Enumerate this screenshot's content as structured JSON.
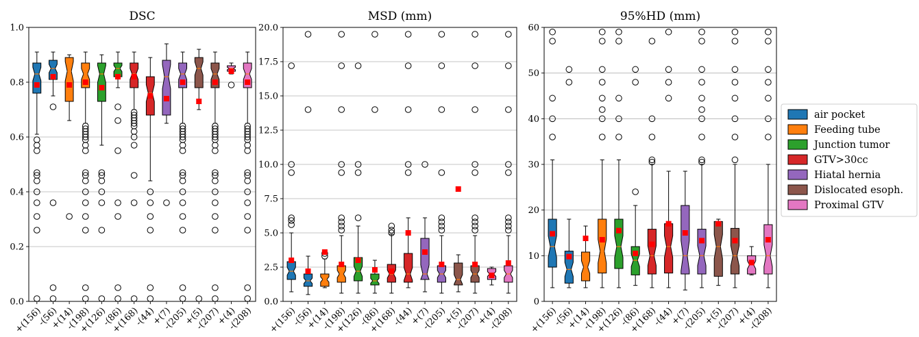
{
  "chart_data": [
    {
      "type": "boxplot",
      "title": "DSC",
      "ylim": [
        0,
        1.0
      ],
      "yticks": [
        "0.0",
        "0.2",
        "0.4",
        "0.6",
        "0.8",
        "1.0"
      ],
      "grid": "horizontal",
      "categories": [
        "+(156)",
        "-(56)",
        "+(14)",
        "-(198)",
        "+(126)",
        "-(86)",
        "+(168)",
        "-(44)",
        "+(7)",
        "-(205)",
        "+(5)",
        "-(207)",
        "+(4)",
        "-(208)"
      ],
      "boxes": [
        {
          "group": "air pocket",
          "q1": 0.76,
          "median": 0.83,
          "q3": 0.87,
          "whislo": 0.61,
          "whishi": 0.91,
          "mean": 0.79,
          "outliers": [
            0.59,
            0.57,
            0.55,
            0.47,
            0.46,
            0.44,
            0.4,
            0.36,
            0.31,
            0.26,
            0.01
          ]
        },
        {
          "group": "air pocket",
          "q1": 0.81,
          "median": 0.85,
          "q3": 0.88,
          "whislo": 0.75,
          "whishi": 0.91,
          "mean": 0.82,
          "outliers": [
            0.71,
            0.36,
            0.05,
            0.01
          ]
        },
        {
          "group": "Feeding tube",
          "q1": 0.73,
          "median": 0.84,
          "q3": 0.89,
          "whislo": 0.66,
          "whishi": 0.9,
          "mean": 0.79,
          "outliers": [
            0.31
          ]
        },
        {
          "group": "Feeding tube",
          "q1": 0.78,
          "median": 0.83,
          "q3": 0.87,
          "whislo": 0.65,
          "whishi": 0.91,
          "mean": 0.8,
          "outliers": [
            0.64,
            0.63,
            0.62,
            0.61,
            0.6,
            0.59,
            0.57,
            0.55,
            0.47,
            0.46,
            0.44,
            0.4,
            0.36,
            0.31,
            0.26,
            0.05,
            0.01
          ]
        },
        {
          "group": "Junction tumor",
          "q1": 0.73,
          "median": 0.83,
          "q3": 0.87,
          "whislo": 0.57,
          "whishi": 0.9,
          "mean": 0.78,
          "outliers": [
            0.47,
            0.46,
            0.44,
            0.4,
            0.36,
            0.26,
            0.01
          ]
        },
        {
          "group": "Junction tumor",
          "q1": 0.82,
          "median": 0.85,
          "q3": 0.87,
          "whislo": 0.78,
          "whishi": 0.91,
          "mean": 0.82,
          "outliers": [
            0.71,
            0.66,
            0.55,
            0.36,
            0.31,
            0.05,
            0.01
          ]
        },
        {
          "group": "GTV>30cc",
          "q1": 0.78,
          "median": 0.83,
          "q3": 0.87,
          "whislo": 0.7,
          "whishi": 0.91,
          "mean": 0.82,
          "outliers": [
            0.69,
            0.68,
            0.67,
            0.66,
            0.65,
            0.64,
            0.62,
            0.6,
            0.57,
            0.46,
            0.36,
            0.01
          ]
        },
        {
          "group": "GTV>30cc",
          "q1": 0.68,
          "median": 0.76,
          "q3": 0.82,
          "whislo": 0.44,
          "whishi": 0.89,
          "mean": 0.75,
          "outliers": [
            0.4,
            0.36,
            0.31,
            0.26,
            0.05,
            0.01
          ]
        },
        {
          "group": "Hiatal hernia",
          "q1": 0.68,
          "median": 0.82,
          "q3": 0.88,
          "whislo": 0.65,
          "whishi": 0.94,
          "mean": 0.74,
          "outliers": [
            0.36
          ]
        },
        {
          "group": "Hiatal hernia",
          "q1": 0.78,
          "median": 0.83,
          "q3": 0.87,
          "whislo": 0.65,
          "whishi": 0.91,
          "mean": 0.8,
          "outliers": [
            0.64,
            0.63,
            0.62,
            0.61,
            0.6,
            0.59,
            0.57,
            0.55,
            0.47,
            0.46,
            0.44,
            0.4,
            0.36,
            0.31,
            0.26,
            0.05,
            0.01
          ]
        },
        {
          "group": "Dislocated esoph.",
          "q1": 0.78,
          "median": 0.85,
          "q3": 0.89,
          "whislo": 0.7,
          "whishi": 0.92,
          "mean": 0.73,
          "outliers": [
            0.01
          ]
        },
        {
          "group": "Dislocated esoph.",
          "q1": 0.78,
          "median": 0.83,
          "q3": 0.87,
          "whislo": 0.65,
          "whishi": 0.91,
          "mean": 0.8,
          "outliers": [
            0.64,
            0.63,
            0.62,
            0.61,
            0.6,
            0.59,
            0.57,
            0.55,
            0.47,
            0.46,
            0.44,
            0.4,
            0.36,
            0.31,
            0.26,
            0.05,
            0.01
          ]
        },
        {
          "group": "Proximal GTV",
          "q1": 0.84,
          "median": 0.85,
          "q3": 0.86,
          "whislo": 0.83,
          "whishi": 0.87,
          "mean": 0.84,
          "outliers": [
            0.79
          ]
        },
        {
          "group": "Proximal GTV",
          "q1": 0.78,
          "median": 0.83,
          "q3": 0.87,
          "whislo": 0.65,
          "whishi": 0.91,
          "mean": 0.8,
          "outliers": [
            0.64,
            0.63,
            0.62,
            0.61,
            0.6,
            0.59,
            0.57,
            0.55,
            0.47,
            0.46,
            0.44,
            0.4,
            0.36,
            0.31,
            0.26,
            0.05,
            0.01
          ]
        }
      ]
    },
    {
      "type": "boxplot",
      "title": "MSD (mm)",
      "ylim": [
        0,
        20.0
      ],
      "yticks": [
        "0.0",
        "2.5",
        "5.0",
        "7.5",
        "10.0",
        "12.5",
        "15.0",
        "17.5",
        "20.0"
      ],
      "grid": "horizontal",
      "categories": [
        "+(156)",
        "-(56)",
        "+(14)",
        "-(198)",
        "+(126)",
        "-(86)",
        "+(168)",
        "-(44)",
        "+(7)",
        "-(205)",
        "+(5)",
        "-(207)",
        "+(4)",
        "-(208)"
      ],
      "boxes": [
        {
          "group": "air pocket",
          "q1": 1.6,
          "median": 2.2,
          "q3": 2.9,
          "whislo": 0.7,
          "whishi": 5.0,
          "mean": 3.0,
          "outliers": [
            5.6,
            5.9,
            6.1,
            9.4,
            10.0,
            17.2
          ]
        },
        {
          "group": "air pocket",
          "q1": 1.1,
          "median": 1.5,
          "q3": 2.0,
          "whislo": 0.5,
          "whishi": 3.3,
          "mean": 2.2,
          "outliers": [
            14.0,
            19.5
          ]
        },
        {
          "group": "Feeding tube",
          "q1": 1.1,
          "median": 1.6,
          "q3": 2.0,
          "whislo": 1.0,
          "whishi": 3.1,
          "mean": 3.6,
          "outliers": [
            3.3,
            3.5
          ]
        },
        {
          "group": "Feeding tube",
          "q1": 1.4,
          "median": 2.0,
          "q3": 2.6,
          "whislo": 0.6,
          "whishi": 4.8,
          "mean": 2.7,
          "outliers": [
            5.2,
            5.5,
            5.8,
            6.1,
            9.4,
            10.0,
            14.0,
            17.2,
            19.5
          ]
        },
        {
          "group": "Junction tumor",
          "q1": 1.5,
          "median": 2.2,
          "q3": 3.2,
          "whislo": 0.6,
          "whishi": 5.5,
          "mean": 3.0,
          "outliers": [
            6.1,
            9.4,
            10.0,
            17.2
          ]
        },
        {
          "group": "Junction tumor",
          "q1": 1.2,
          "median": 1.5,
          "q3": 2.0,
          "whislo": 0.6,
          "whishi": 3.0,
          "mean": 2.3,
          "outliers": [
            14.0,
            19.5
          ]
        },
        {
          "group": "GTV>30cc",
          "q1": 1.4,
          "median": 2.0,
          "q3": 2.7,
          "whislo": 0.6,
          "whishi": 4.9,
          "mean": 2.2,
          "outliers": [
            5.0,
            5.2,
            5.5
          ]
        },
        {
          "group": "GTV>30cc",
          "q1": 1.4,
          "median": 2.0,
          "q3": 3.5,
          "whislo": 1.0,
          "whishi": 6.1,
          "mean": 5.0,
          "outliers": [
            9.4,
            10.0,
            14.0,
            17.2,
            19.5
          ]
        },
        {
          "group": "Hiatal hernia",
          "q1": 1.6,
          "median": 2.0,
          "q3": 4.6,
          "whislo": 0.7,
          "whishi": 6.1,
          "mean": 3.6,
          "outliers": [
            10.0
          ]
        },
        {
          "group": "Hiatal hernia",
          "q1": 1.4,
          "median": 2.0,
          "q3": 2.6,
          "whislo": 0.6,
          "whishi": 4.8,
          "mean": 2.7,
          "outliers": [
            5.2,
            5.5,
            5.8,
            6.1,
            9.4,
            14.0,
            17.2,
            19.5
          ]
        },
        {
          "group": "Dislocated esoph.",
          "q1": 1.2,
          "median": 1.6,
          "q3": 2.8,
          "whislo": 0.7,
          "whishi": 3.4,
          "mean": 8.2,
          "outliers": []
        },
        {
          "group": "Dislocated esoph.",
          "q1": 1.4,
          "median": 2.0,
          "q3": 2.6,
          "whislo": 0.6,
          "whishi": 4.8,
          "mean": 2.7,
          "outliers": [
            5.2,
            5.5,
            5.8,
            6.1,
            9.4,
            10.0,
            14.0,
            17.2,
            19.5
          ]
        },
        {
          "group": "Proximal GTV",
          "q1": 1.6,
          "median": 2.0,
          "q3": 2.4,
          "whislo": 1.2,
          "whishi": 2.5,
          "mean": 1.9,
          "outliers": []
        },
        {
          "group": "Proximal GTV",
          "q1": 1.4,
          "median": 2.0,
          "q3": 2.6,
          "whislo": 0.6,
          "whishi": 4.8,
          "mean": 2.8,
          "outliers": [
            5.2,
            5.5,
            5.8,
            6.1,
            9.4,
            10.0,
            14.0,
            17.2,
            19.5
          ]
        }
      ]
    },
    {
      "type": "boxplot",
      "title": "95%HD (mm)",
      "ylim": [
        0,
        60
      ],
      "yticks": [
        "0",
        "10",
        "20",
        "30",
        "40",
        "50",
        "60"
      ],
      "grid": "horizontal",
      "categories": [
        "+(156)",
        "-(56)",
        "+(14)",
        "-(198)",
        "+(126)",
        "-(86)",
        "+(168)",
        "-(44)",
        "+(7)",
        "-(205)",
        "+(5)",
        "-(207)",
        "+(4)",
        "-(208)"
      ],
      "boxes": [
        {
          "group": "air pocket",
          "q1": 7.5,
          "median": 12.0,
          "q3": 18.0,
          "whislo": 3.0,
          "whishi": 31.0,
          "mean": 14.8,
          "outliers": [
            36.0,
            40.0,
            44.5,
            57.0,
            59.0
          ]
        },
        {
          "group": "air pocket",
          "q1": 4.0,
          "median": 7.0,
          "q3": 11.0,
          "whislo": 3.0,
          "whishi": 18.0,
          "mean": 9.8,
          "outliers": [
            48.0,
            50.8
          ]
        },
        {
          "group": "Feeding tube",
          "q1": 4.5,
          "median": 7.5,
          "q3": 10.8,
          "whislo": 3.0,
          "whishi": 16.5,
          "mean": 13.8,
          "outliers": []
        },
        {
          "group": "Feeding tube",
          "q1": 6.2,
          "median": 11.0,
          "q3": 18.0,
          "whislo": 3.0,
          "whishi": 31.0,
          "mean": 13.5,
          "outliers": [
            36.0,
            40.0,
            42.0,
            44.5,
            48.0,
            50.8,
            57.0,
            59.0
          ]
        },
        {
          "group": "Junction tumor",
          "q1": 7.2,
          "median": 12.0,
          "q3": 18.0,
          "whislo": 3.0,
          "whishi": 31.0,
          "mean": 15.5,
          "outliers": [
            36.0,
            40.0,
            44.5,
            57.0,
            59.0
          ]
        },
        {
          "group": "Junction tumor",
          "q1": 5.8,
          "median": 9.0,
          "q3": 12.0,
          "whislo": 3.5,
          "whishi": 21.0,
          "mean": 10.5,
          "outliers": [
            24.0,
            48.0,
            50.8
          ]
        },
        {
          "group": "GTV>30cc",
          "q1": 6.0,
          "median": 10.0,
          "q3": 15.8,
          "whislo": 3.0,
          "whishi": 30.0,
          "mean": 12.5,
          "outliers": [
            30.5,
            31.0,
            36.0,
            40.0,
            57.0
          ]
        },
        {
          "group": "GTV>30cc",
          "q1": 6.2,
          "median": 12.0,
          "q3": 17.0,
          "whislo": 3.0,
          "whishi": 28.5,
          "mean": 17.0,
          "outliers": [
            44.5,
            48.0,
            50.8,
            59.0
          ]
        },
        {
          "group": "Hiatal hernia",
          "q1": 6.0,
          "median": 10.0,
          "q3": 21.0,
          "whislo": 2.5,
          "whishi": 28.5,
          "mean": 15.0,
          "outliers": []
        },
        {
          "group": "Hiatal hernia",
          "q1": 6.0,
          "median": 10.0,
          "q3": 15.8,
          "whislo": 3.0,
          "whishi": 30.0,
          "mean": 13.3,
          "outliers": [
            30.5,
            31.0,
            36.0,
            40.0,
            42.0,
            44.5,
            48.0,
            50.8,
            57.0,
            59.0
          ]
        },
        {
          "group": "Dislocated esoph.",
          "q1": 5.5,
          "median": 12.0,
          "q3": 17.5,
          "whislo": 3.5,
          "whishi": 18.0,
          "mean": 17.0,
          "outliers": []
        },
        {
          "group": "Dislocated esoph.",
          "q1": 6.0,
          "median": 10.0,
          "q3": 16.0,
          "whislo": 3.0,
          "whishi": 30.0,
          "mean": 13.3,
          "outliers": [
            31.0,
            36.0,
            40.0,
            44.5,
            48.0,
            50.8,
            57.0,
            59.0
          ]
        },
        {
          "group": "Proximal GTV",
          "q1": 6.0,
          "median": 8.0,
          "q3": 10.0,
          "whislo": 5.8,
          "whishi": 12.0,
          "mean": 8.5,
          "outliers": []
        },
        {
          "group": "Proximal GTV",
          "q1": 6.0,
          "median": 10.0,
          "q3": 16.8,
          "whislo": 3.0,
          "whishi": 30.0,
          "mean": 13.5,
          "outliers": [
            36.0,
            40.0,
            44.5,
            48.0,
            50.8,
            57.0,
            59.0
          ]
        }
      ]
    }
  ],
  "legend": {
    "position": "right",
    "items": [
      {
        "label": "air pocket",
        "color": "#1f77b4"
      },
      {
        "label": "Feeding tube",
        "color": "#ff7f0e"
      },
      {
        "label": "Junction tumor",
        "color": "#2ca02c"
      },
      {
        "label": "GTV>30cc",
        "color": "#d62728"
      },
      {
        "label": "Hiatal hernia",
        "color": "#9467bd"
      },
      {
        "label": "Dislocated esoph.",
        "color": "#8c564b"
      },
      {
        "label": "Proximal GTV",
        "color": "#e377c2"
      }
    ]
  },
  "style": {
    "mean_marker_color": "#ff0000",
    "median_color": "#ff7f0e",
    "grid_color": "#b0b0b0"
  }
}
